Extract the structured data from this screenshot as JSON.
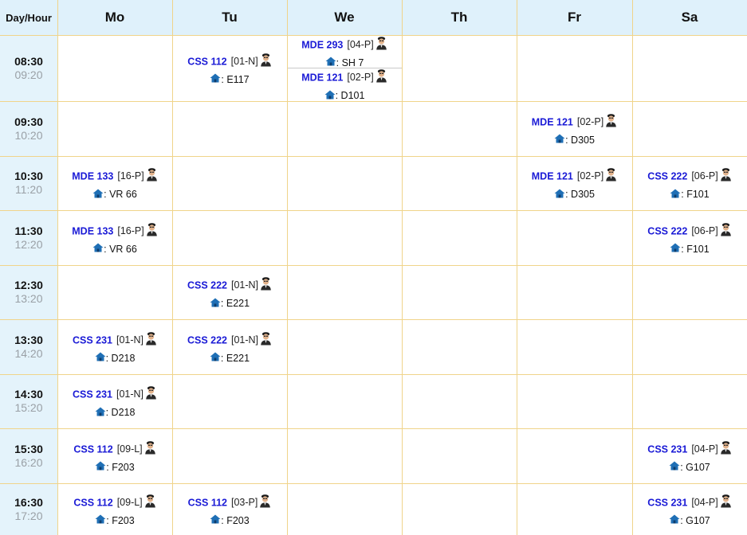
{
  "header": {
    "corner": "Day/Hour",
    "days": [
      "Mo",
      "Tu",
      "We",
      "Th",
      "Fr",
      "Sa"
    ]
  },
  "times": [
    {
      "start": "08:30",
      "end": "09:20"
    },
    {
      "start": "09:30",
      "end": "10:20"
    },
    {
      "start": "10:30",
      "end": "11:20"
    },
    {
      "start": "11:30",
      "end": "12:20"
    },
    {
      "start": "12:30",
      "end": "13:20"
    },
    {
      "start": "13:30",
      "end": "14:20"
    },
    {
      "start": "14:30",
      "end": "15:20"
    },
    {
      "start": "15:30",
      "end": "16:20"
    },
    {
      "start": "16:30",
      "end": "17:20"
    }
  ],
  "entries": [
    {
      "day": 1,
      "slot": 0,
      "code": "CSS 112",
      "section": "[01-N]",
      "room": "E117"
    },
    {
      "day": 2,
      "slot": 0,
      "code": "MDE 293",
      "section": "[04-P]",
      "room": "SH 7",
      "part": "top"
    },
    {
      "day": 2,
      "slot": 0,
      "code": "MDE 121",
      "section": "[02-P]",
      "room": "D101",
      "part": "bottom"
    },
    {
      "day": 4,
      "slot": 1,
      "code": "MDE 121",
      "section": "[02-P]",
      "room": "D305"
    },
    {
      "day": 0,
      "slot": 2,
      "code": "MDE 133",
      "section": "[16-P]",
      "room": "VR 66"
    },
    {
      "day": 4,
      "slot": 2,
      "code": "MDE 121",
      "section": "[02-P]",
      "room": "D305"
    },
    {
      "day": 5,
      "slot": 2,
      "code": "CSS 222",
      "section": "[06-P]",
      "room": "F101"
    },
    {
      "day": 0,
      "slot": 3,
      "code": "MDE 133",
      "section": "[16-P]",
      "room": "VR 66"
    },
    {
      "day": 5,
      "slot": 3,
      "code": "CSS 222",
      "section": "[06-P]",
      "room": "F101"
    },
    {
      "day": 1,
      "slot": 4,
      "code": "CSS 222",
      "section": "[01-N]",
      "room": "E221"
    },
    {
      "day": 0,
      "slot": 5,
      "code": "CSS 231",
      "section": "[01-N]",
      "room": "D218"
    },
    {
      "day": 1,
      "slot": 5,
      "code": "CSS 222",
      "section": "[01-N]",
      "room": "E221"
    },
    {
      "day": 0,
      "slot": 6,
      "code": "CSS 231",
      "section": "[01-N]",
      "room": "D218"
    },
    {
      "day": 0,
      "slot": 7,
      "code": "CSS 112",
      "section": "[09-L]",
      "room": "F203"
    },
    {
      "day": 5,
      "slot": 7,
      "code": "CSS 231",
      "section": "[04-P]",
      "room": "G107"
    },
    {
      "day": 0,
      "slot": 8,
      "code": "CSS 112",
      "section": "[09-L]",
      "room": "F203"
    },
    {
      "day": 1,
      "slot": 8,
      "code": "CSS 112",
      "section": "[03-P]",
      "room": "F203"
    },
    {
      "day": 5,
      "slot": 8,
      "code": "CSS 231",
      "section": "[04-P]",
      "room": "G107"
    }
  ],
  "room_prefix": ":",
  "colors": {
    "header_bg": "#dff1fb",
    "grid_line": "#f0d48a",
    "course_code": "#1a1ad6"
  }
}
